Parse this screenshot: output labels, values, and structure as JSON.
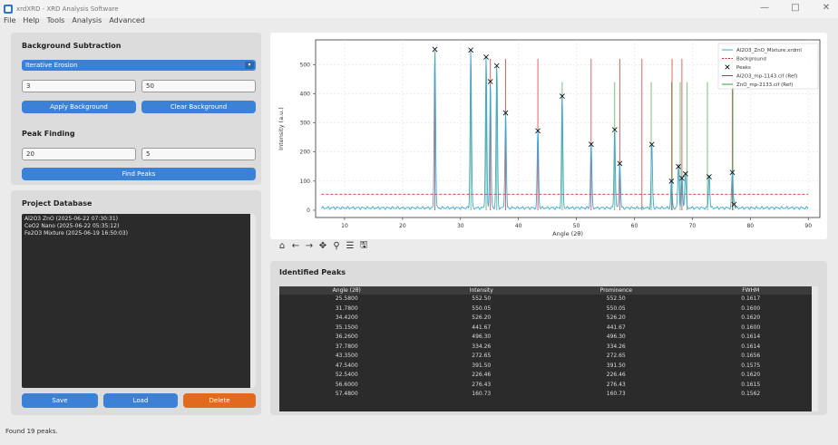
{
  "window": {
    "title": "xrdXRD - XRD Analysis Software",
    "controls": {
      "minimize": "—",
      "maximize": "□",
      "close": "✕"
    }
  },
  "menu": [
    "File",
    "Help",
    "Tools",
    "Analysis",
    "Advanced"
  ],
  "background_subtraction": {
    "title": "Background Subtraction",
    "method": "Iterative Erosion",
    "param1": "3",
    "param2": "50",
    "apply_label": "Apply Background",
    "clear_label": "Clear Background"
  },
  "peak_finding": {
    "title": "Peak Finding",
    "param1": "20",
    "param2": "5",
    "find_label": "Find Peaks"
  },
  "project_database": {
    "title": "Project Database",
    "items": [
      "Al2O3 ZnO (2025-06-22 07:30:31)",
      "CeO2 Nano (2025-06-22 05:35:12)",
      "Fe2O3 Mixture (2025-06-19 16:50:03)"
    ],
    "save_label": "Save",
    "load_label": "Load",
    "delete_label": "Delete"
  },
  "toolbar_icons": [
    "home-icon",
    "back-arrow-icon",
    "forward-arrow-icon",
    "pan-icon",
    "zoom-icon",
    "configure-icon",
    "save-figure-icon"
  ],
  "toolbar_glyphs": [
    "⌂",
    "←",
    "→",
    "✥",
    "⚲",
    "☰",
    "🖫"
  ],
  "chart_data": {
    "type": "line",
    "xlabel": "Angle (2θ)",
    "ylabel": "Intensity (a.u.)",
    "xlim": [
      5,
      92
    ],
    "ylim": [
      -25,
      585
    ],
    "xticks": [
      10,
      20,
      30,
      40,
      50,
      60,
      70,
      80,
      90
    ],
    "yticks": [
      0,
      100,
      200,
      300,
      400,
      500
    ],
    "grid": true,
    "legend_position": "top-right",
    "legend": [
      {
        "name": "Al2O3_ZnO_Mixture.xrdml",
        "color": "#3aa6d6",
        "style": "solid"
      },
      {
        "name": "Background",
        "color": "#d42a2a",
        "style": "dashed"
      },
      {
        "name": "Peaks",
        "color": "#000000",
        "style": "marker-x"
      },
      {
        "name": "Al2O3_mp-1143.cif (Ref)",
        "color": "#d42a2a",
        "style": "solid"
      },
      {
        "name": "ZnO_mp-2133.cif (Ref)",
        "color": "#2ca02c",
        "style": "solid"
      }
    ],
    "background_level": 55,
    "peaks": [
      {
        "x": 25.58,
        "y": 552.5
      },
      {
        "x": 31.78,
        "y": 550.05
      },
      {
        "x": 34.42,
        "y": 526.2
      },
      {
        "x": 35.15,
        "y": 441.67
      },
      {
        "x": 36.26,
        "y": 496.3
      },
      {
        "x": 37.78,
        "y": 334.26
      },
      {
        "x": 43.35,
        "y": 272.65
      },
      {
        "x": 47.54,
        "y": 391.5
      },
      {
        "x": 52.54,
        "y": 226.46
      },
      {
        "x": 56.6,
        "y": 276.43
      },
      {
        "x": 57.48,
        "y": 160.73
      },
      {
        "x": 63.0,
        "y": 226.0
      },
      {
        "x": 66.4,
        "y": 100.0
      },
      {
        "x": 67.6,
        "y": 150.0
      },
      {
        "x": 68.2,
        "y": 110.0
      },
      {
        "x": 68.8,
        "y": 125.0
      },
      {
        "x": 72.9,
        "y": 115.0
      },
      {
        "x": 76.9,
        "y": 130.0
      },
      {
        "x": 77.2,
        "y": 20.0
      }
    ],
    "al2o3_ref": [
      25.58,
      35.15,
      37.78,
      43.35,
      52.54,
      57.48,
      61.3,
      66.5,
      68.2,
      76.9
    ],
    "zno_ref": [
      31.78,
      34.42,
      36.26,
      47.54,
      56.6,
      62.9,
      66.4,
      67.9,
      69.1,
      72.6,
      77.0
    ]
  },
  "identified_peaks": {
    "title": "Identified Peaks",
    "columns": [
      "Angle (2θ)",
      "Intensity",
      "Prominence",
      "FWHM"
    ],
    "rows": [
      [
        "25.5800",
        "552.50",
        "552.50",
        "0.1617"
      ],
      [
        "31.7800",
        "550.05",
        "550.05",
        "0.1600"
      ],
      [
        "34.4200",
        "526.20",
        "526.20",
        "0.1620"
      ],
      [
        "35.1500",
        "441.67",
        "441.67",
        "0.1600"
      ],
      [
        "36.2600",
        "496.30",
        "496.30",
        "0.1614"
      ],
      [
        "37.7800",
        "334.26",
        "334.26",
        "0.1614"
      ],
      [
        "43.3500",
        "272.65",
        "272.65",
        "0.1656"
      ],
      [
        "47.5400",
        "391.50",
        "391.50",
        "0.1575"
      ],
      [
        "52.5400",
        "226.46",
        "226.46",
        "0.1620"
      ],
      [
        "56.6000",
        "276.43",
        "276.43",
        "0.1615"
      ],
      [
        "57.4800",
        "160.73",
        "160.73",
        "0.1562"
      ]
    ]
  },
  "status": "Found 19 peaks."
}
